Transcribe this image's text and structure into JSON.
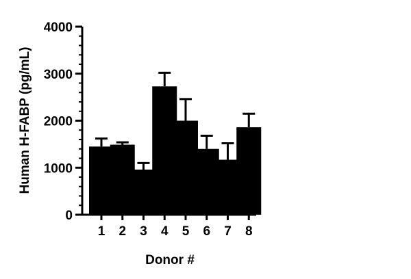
{
  "chart_data": {
    "type": "bar",
    "xlabel": "Donor #",
    "ylabel": "Human H-FABP (pg/mL)",
    "categories": [
      "1",
      "2",
      "3",
      "4",
      "5",
      "6",
      "7",
      "8"
    ],
    "values": [
      1450,
      1490,
      960,
      2730,
      2000,
      1400,
      1170,
      1860
    ],
    "error_upper": [
      170,
      50,
      140,
      290,
      460,
      280,
      350,
      290
    ],
    "ylim": [
      0,
      4000
    ],
    "y_ticks": [
      0,
      1000,
      2000,
      3000,
      4000
    ],
    "y_tick_labels": [
      "0",
      "1000",
      "2000",
      "3000",
      "4000"
    ],
    "grid": false,
    "bar_color": "#000000"
  }
}
